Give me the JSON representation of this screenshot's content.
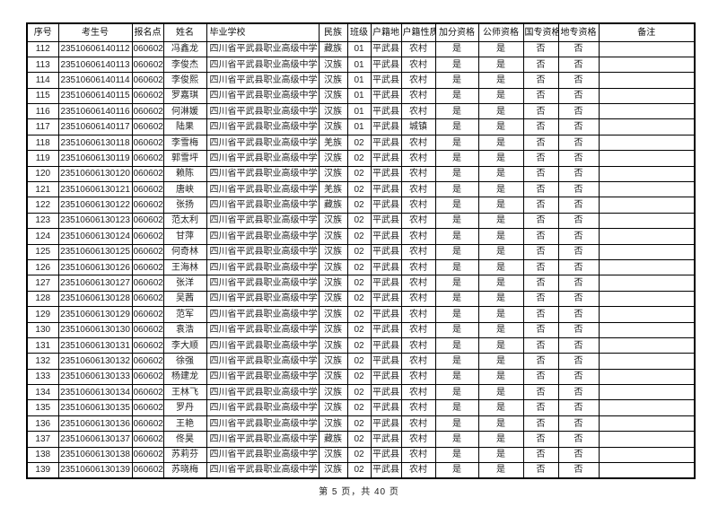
{
  "page": {
    "footer": "第 5 页，共 40 页"
  },
  "colors": {
    "background": "#ffffff",
    "border": "#000000",
    "text": "#1f1f1f"
  },
  "table": {
    "headers": [
      "序号",
      "考生号",
      "报名点",
      "姓名",
      "毕业学校",
      "民族",
      "班级",
      "户籍地",
      "户籍性质",
      "加分资格",
      "公师资格",
      "国专资格",
      "地专资格",
      "备注"
    ],
    "rows": [
      [
        "112",
        "23510606140112",
        "060602",
        "冯鑫龙",
        "四川省平武县职业高级中学",
        "藏族",
        "01",
        "平武县",
        "农村",
        "是",
        "是",
        "否",
        "否",
        ""
      ],
      [
        "113",
        "23510606140113",
        "060602",
        "李俊杰",
        "四川省平武县职业高级中学",
        "汉族",
        "01",
        "平武县",
        "农村",
        "是",
        "是",
        "否",
        "否",
        ""
      ],
      [
        "114",
        "23510606140114",
        "060602",
        "李俊熙",
        "四川省平武县职业高级中学",
        "汉族",
        "01",
        "平武县",
        "农村",
        "是",
        "是",
        "否",
        "否",
        ""
      ],
      [
        "115",
        "23510606140115",
        "060602",
        "罗嘉琪",
        "四川省平武县职业高级中学",
        "汉族",
        "01",
        "平武县",
        "农村",
        "是",
        "是",
        "否",
        "否",
        ""
      ],
      [
        "116",
        "23510606140116",
        "060602",
        "何淋媛",
        "四川省平武县职业高级中学",
        "汉族",
        "01",
        "平武县",
        "农村",
        "是",
        "是",
        "否",
        "否",
        ""
      ],
      [
        "117",
        "23510606140117",
        "060602",
        "陆果",
        "四川省平武县职业高级中学",
        "汉族",
        "01",
        "平武县",
        "城镇",
        "是",
        "是",
        "否",
        "否",
        ""
      ],
      [
        "118",
        "23510606130118",
        "060602",
        "李雪梅",
        "四川省平武县职业高级中学",
        "羌族",
        "02",
        "平武县",
        "农村",
        "是",
        "是",
        "否",
        "否",
        ""
      ],
      [
        "119",
        "23510606130119",
        "060602",
        "郭雪坪",
        "四川省平武县职业高级中学",
        "汉族",
        "02",
        "平武县",
        "农村",
        "是",
        "是",
        "否",
        "否",
        ""
      ],
      [
        "120",
        "23510606130120",
        "060602",
        "赖陈",
        "四川省平武县职业高级中学",
        "汉族",
        "02",
        "平武县",
        "农村",
        "是",
        "是",
        "否",
        "否",
        ""
      ],
      [
        "121",
        "23510606130121",
        "060602",
        "唐峡",
        "四川省平武县职业高级中学",
        "羌族",
        "02",
        "平武县",
        "农村",
        "是",
        "是",
        "否",
        "否",
        ""
      ],
      [
        "122",
        "23510606130122",
        "060602",
        "张扬",
        "四川省平武县职业高级中学",
        "藏族",
        "02",
        "平武县",
        "农村",
        "是",
        "是",
        "否",
        "否",
        ""
      ],
      [
        "123",
        "23510606130123",
        "060602",
        "范太利",
        "四川省平武县职业高级中学",
        "汉族",
        "02",
        "平武县",
        "农村",
        "是",
        "是",
        "否",
        "否",
        ""
      ],
      [
        "124",
        "23510606130124",
        "060602",
        "甘萍",
        "四川省平武县职业高级中学",
        "汉族",
        "02",
        "平武县",
        "农村",
        "是",
        "是",
        "否",
        "否",
        ""
      ],
      [
        "125",
        "23510606130125",
        "060602",
        "何奇林",
        "四川省平武县职业高级中学",
        "汉族",
        "02",
        "平武县",
        "农村",
        "是",
        "是",
        "否",
        "否",
        ""
      ],
      [
        "126",
        "23510606130126",
        "060602",
        "王海林",
        "四川省平武县职业高级中学",
        "汉族",
        "02",
        "平武县",
        "农村",
        "是",
        "是",
        "否",
        "否",
        ""
      ],
      [
        "127",
        "23510606130127",
        "060602",
        "张洋",
        "四川省平武县职业高级中学",
        "汉族",
        "02",
        "平武县",
        "农村",
        "是",
        "是",
        "否",
        "否",
        ""
      ],
      [
        "128",
        "23510606130128",
        "060602",
        "吴茜",
        "四川省平武县职业高级中学",
        "汉族",
        "02",
        "平武县",
        "农村",
        "是",
        "是",
        "否",
        "否",
        ""
      ],
      [
        "129",
        "23510606130129",
        "060602",
        "范军",
        "四川省平武县职业高级中学",
        "汉族",
        "02",
        "平武县",
        "农村",
        "是",
        "是",
        "否",
        "否",
        ""
      ],
      [
        "130",
        "23510606130130",
        "060602",
        "袁浩",
        "四川省平武县职业高级中学",
        "汉族",
        "02",
        "平武县",
        "农村",
        "是",
        "是",
        "否",
        "否",
        ""
      ],
      [
        "131",
        "23510606130131",
        "060602",
        "李大顺",
        "四川省平武县职业高级中学",
        "汉族",
        "02",
        "平武县",
        "农村",
        "是",
        "是",
        "否",
        "否",
        ""
      ],
      [
        "132",
        "23510606130132",
        "060602",
        "徐强",
        "四川省平武县职业高级中学",
        "汉族",
        "02",
        "平武县",
        "农村",
        "是",
        "是",
        "否",
        "否",
        ""
      ],
      [
        "133",
        "23510606130133",
        "060602",
        "杨建龙",
        "四川省平武县职业高级中学",
        "汉族",
        "02",
        "平武县",
        "农村",
        "是",
        "是",
        "否",
        "否",
        ""
      ],
      [
        "134",
        "23510606130134",
        "060602",
        "王林飞",
        "四川省平武县职业高级中学",
        "汉族",
        "02",
        "平武县",
        "农村",
        "是",
        "是",
        "否",
        "否",
        ""
      ],
      [
        "135",
        "23510606130135",
        "060602",
        "罗丹",
        "四川省平武县职业高级中学",
        "汉族",
        "02",
        "平武县",
        "农村",
        "是",
        "是",
        "否",
        "否",
        ""
      ],
      [
        "136",
        "23510606130136",
        "060602",
        "王艳",
        "四川省平武县职业高级中学",
        "汉族",
        "02",
        "平武县",
        "农村",
        "是",
        "是",
        "否",
        "否",
        ""
      ],
      [
        "137",
        "23510606130137",
        "060602",
        "佟昊",
        "四川省平武县职业高级中学",
        "藏族",
        "02",
        "平武县",
        "农村",
        "是",
        "是",
        "否",
        "否",
        ""
      ],
      [
        "138",
        "23510606130138",
        "060602",
        "苏莉芬",
        "四川省平武县职业高级中学",
        "汉族",
        "02",
        "平武县",
        "农村",
        "是",
        "是",
        "否",
        "否",
        ""
      ],
      [
        "139",
        "23510606130139",
        "060602",
        "苏晓梅",
        "四川省平武县职业高级中学",
        "汉族",
        "02",
        "平武县",
        "农村",
        "是",
        "是",
        "否",
        "否",
        ""
      ]
    ]
  }
}
